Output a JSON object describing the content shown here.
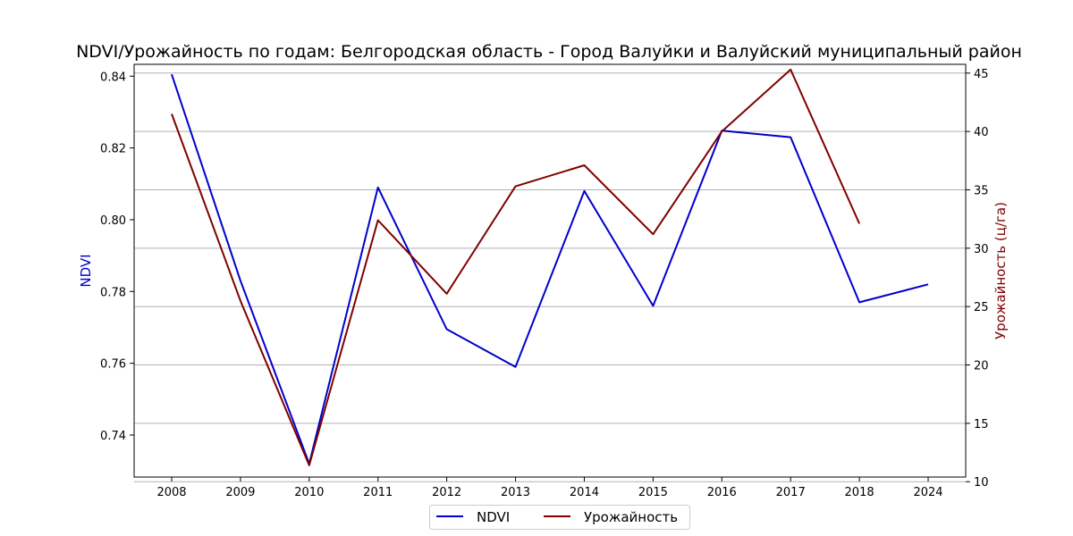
{
  "chart_data": {
    "type": "line",
    "title": "NDVI/Урожайность по годам: Белгородская область - Город Валуйки и Валуйский муниципальный район",
    "categories": [
      "2008",
      "2009",
      "2010",
      "2011",
      "2012",
      "2013",
      "2014",
      "2015",
      "2016",
      "2017",
      "2018",
      "2024"
    ],
    "series": [
      {
        "name": "NDVI",
        "axis": "left",
        "color": "#0000cd",
        "values": [
          0.8405,
          0.783,
          0.732,
          0.809,
          0.7695,
          0.759,
          0.808,
          0.776,
          0.8248,
          0.823,
          0.777,
          0.782
        ]
      },
      {
        "name": "Урожайность",
        "axis": "right",
        "color": "#800000",
        "values": [
          41.5,
          25.5,
          11.4,
          32.4,
          26.1,
          35.3,
          37.1,
          31.2,
          40.0,
          45.3,
          32.1,
          null
        ]
      }
    ],
    "ylabel_left": "NDVI",
    "ylabel_right": "Урожайность (ц/га)",
    "ylim_left": [
      0.7283,
      0.8433
    ],
    "ylim_right": [
      10.4,
      45.75
    ],
    "yticks_left": [
      "0.74",
      "0.76",
      "0.78",
      "0.80",
      "0.82",
      "0.84"
    ],
    "yticks_right": [
      "10",
      "15",
      "20",
      "25",
      "30",
      "35",
      "40",
      "45"
    ],
    "grid": "horizontal lines at right-axis ticks",
    "legend": {
      "placement": "bottom-center",
      "entries": [
        "NDVI",
        "Урожайность"
      ]
    }
  }
}
